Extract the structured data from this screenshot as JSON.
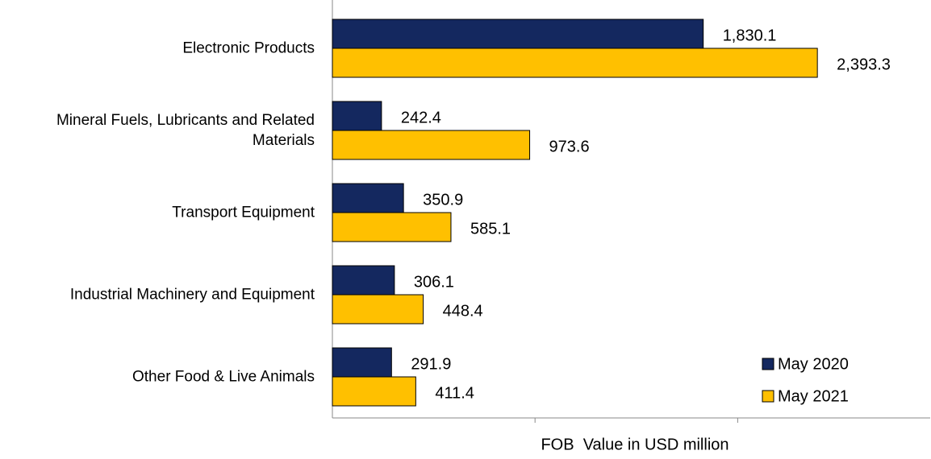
{
  "chart_data": {
    "type": "hbar",
    "categories": [
      "Electronic Products",
      "Mineral Fuels, Lubricants and Related Materials",
      "Transport Equipment",
      "Industrial Machinery and Equipment",
      "Other Food & Live Animals"
    ],
    "series": [
      {
        "name": "May 2020",
        "color": "#14285f",
        "values": [
          1830.1,
          242.4,
          350.9,
          306.1,
          291.9
        ],
        "value_labels": [
          "1,830.1",
          "242.4",
          "350.9",
          "306.1",
          "291.9"
        ]
      },
      {
        "name": "May 2021",
        "color": "#ffc000",
        "values": [
          2393.3,
          973.6,
          585.1,
          448.4,
          411.4
        ],
        "value_labels": [
          "2,393.3",
          "973.6",
          "585.1",
          "448.4",
          "411.4"
        ]
      }
    ],
    "xlabel": "FOB  Value in USD million",
    "xlim": [
      0,
      2950
    ],
    "xticks": [
      1000,
      2000
    ],
    "legend": "lower right"
  }
}
